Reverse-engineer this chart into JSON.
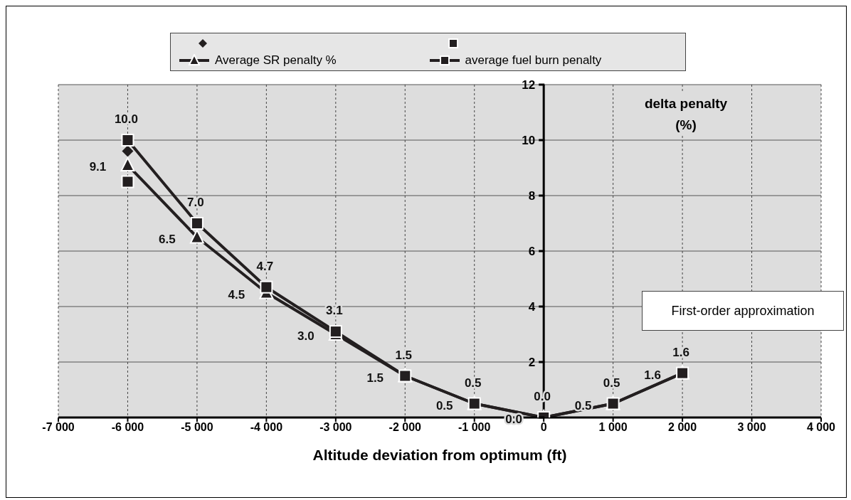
{
  "chart_data": {
    "type": "line",
    "xlabel": "Altitude deviation from optimum (ft)",
    "ylabel": "delta penalty\n(%)",
    "x": [
      -6000,
      -5000,
      -4000,
      -3000,
      -2000,
      -1000,
      0,
      1000,
      2000
    ],
    "series": [
      {
        "type": "scatter",
        "marker": "diamond",
        "color": "#231f20",
        "values": [
          9.6,
          null,
          null,
          null,
          null,
          null,
          null,
          null,
          null
        ]
      },
      {
        "type": "scatter",
        "marker": "square",
        "color": "#231f20",
        "values": [
          8.5,
          null,
          null,
          null,
          null,
          null,
          null,
          null,
          null
        ]
      },
      {
        "name": "Average SR penalty %",
        "marker": "triangle",
        "color": "#231f20",
        "values": [
          9.1,
          6.5,
          4.5,
          3.0,
          1.5,
          0.5,
          0.0,
          0.5,
          1.6
        ],
        "value_labels": [
          "9.1",
          "6.5",
          "4.5",
          "3.0",
          "1.5",
          "0.5",
          "0.0",
          "0.5",
          "1.6"
        ]
      },
      {
        "name": "average fuel burn penalty",
        "marker": "square",
        "color": "#231f20",
        "values": [
          10.0,
          7.0,
          4.7,
          3.1,
          1.5,
          0.5,
          0.0,
          0.5,
          1.6
        ],
        "value_labels": [
          "10.0",
          "7.0",
          "4.7",
          "3.1",
          "1.5",
          "0.5",
          "0.0",
          "0.5",
          "1.6"
        ]
      }
    ],
    "xlim": [
      -7000,
      4000
    ],
    "xticks": [
      {
        "value": -7000,
        "label": "-7 000"
      },
      {
        "value": -6000,
        "label": "-6 000"
      },
      {
        "value": -5000,
        "label": "-5 000"
      },
      {
        "value": -4000,
        "label": "-4 000"
      },
      {
        "value": -3000,
        "label": "-3 000"
      },
      {
        "value": -2000,
        "label": "-2 000"
      },
      {
        "value": -1000,
        "label": "-1 000"
      },
      0,
      {
        "value": 1000,
        "label": "1 000"
      },
      {
        "value": 2000,
        "label": "2 000"
      },
      {
        "value": 3000,
        "label": "3 000"
      },
      {
        "value": 4000,
        "label": "4 000"
      }
    ],
    "ylim": [
      0,
      12
    ],
    "yticks": [
      {
        "value": 0,
        "label": null
      },
      2,
      4,
      6,
      8,
      10,
      12
    ],
    "grid": true,
    "legend": "top",
    "annotations": [
      "First-order approximation"
    ]
  }
}
